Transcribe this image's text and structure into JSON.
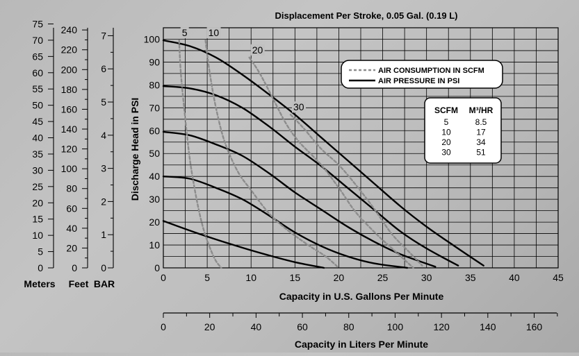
{
  "chart_data": {
    "type": "line",
    "title": "Displacement Per Stroke, 0.05 Gal. (0.19 L)",
    "xlabel": "Capacity in U.S. Gallons Per Minute",
    "ylabel": "Discharge Head in PSI",
    "xlim": [
      0,
      45
    ],
    "ylim": [
      0,
      105
    ],
    "x_ticks": [
      0,
      5,
      10,
      15,
      20,
      25,
      30,
      35,
      40,
      45
    ],
    "y_ticks": [
      0,
      10,
      20,
      30,
      40,
      50,
      60,
      70,
      80,
      90,
      100
    ],
    "grid": true,
    "legend_position": "top-right",
    "legend": {
      "dashed": "AIR CONSUMPTION IN SCFM",
      "solid": "AIR PRESSURE IN PSI"
    },
    "secondary_x_axis": {
      "label": "Capacity in Liters Per Minute",
      "ticks": [
        0,
        20,
        40,
        60,
        80,
        100,
        120,
        140,
        160
      ]
    },
    "left_scales": [
      {
        "label": "Meters",
        "ticks": [
          0,
          5,
          10,
          15,
          20,
          25,
          30,
          35,
          40,
          45,
          50,
          55,
          60,
          65,
          70,
          75
        ]
      },
      {
        "label": "Feet",
        "ticks": [
          0,
          20,
          40,
          60,
          80,
          100,
          120,
          140,
          160,
          180,
          200,
          220,
          240
        ]
      },
      {
        "label": "BAR",
        "ticks": [
          0,
          1,
          2,
          3,
          4,
          5,
          6,
          7
        ]
      }
    ],
    "conversion_table": {
      "headers": [
        "SCFM",
        "M³/HR"
      ],
      "rows": [
        [
          "5",
          "8.5"
        ],
        [
          "10",
          "17"
        ],
        [
          "20",
          "34"
        ],
        [
          "30",
          "51"
        ]
      ]
    },
    "series": [
      {
        "style": "solid",
        "points": [
          [
            0,
            20.5
          ],
          [
            4,
            15
          ],
          [
            8,
            10
          ],
          [
            12,
            5.5
          ],
          [
            15,
            2.5
          ],
          [
            18.3,
            0
          ]
        ]
      },
      {
        "style": "solid",
        "points": [
          [
            0,
            40
          ],
          [
            3,
            39
          ],
          [
            6,
            35
          ],
          [
            9,
            30
          ],
          [
            12,
            23
          ],
          [
            15,
            15.5
          ],
          [
            18,
            9.5
          ],
          [
            21,
            5
          ],
          [
            24,
            2
          ],
          [
            27.8,
            0
          ]
        ]
      },
      {
        "style": "solid",
        "points": [
          [
            0,
            59.5
          ],
          [
            3,
            58
          ],
          [
            6,
            54
          ],
          [
            9,
            49
          ],
          [
            12,
            41.5
          ],
          [
            15,
            33
          ],
          [
            18,
            25.5
          ],
          [
            21,
            18
          ],
          [
            24,
            11.5
          ],
          [
            27,
            6
          ],
          [
            31,
            0.5
          ]
        ]
      },
      {
        "style": "solid",
        "points": [
          [
            0,
            79.5
          ],
          [
            3,
            78.5
          ],
          [
            6,
            75.5
          ],
          [
            9,
            70
          ],
          [
            12,
            62
          ],
          [
            15,
            53
          ],
          [
            18,
            44.5
          ],
          [
            21,
            35
          ],
          [
            24,
            25.5
          ],
          [
            27,
            16
          ],
          [
            30,
            8.5
          ],
          [
            33.6,
            1
          ]
        ]
      },
      {
        "style": "solid",
        "points": [
          [
            0,
            99.5
          ],
          [
            3,
            97
          ],
          [
            6,
            92
          ],
          [
            9,
            84.5
          ],
          [
            12,
            76
          ],
          [
            15,
            67
          ],
          [
            18,
            57
          ],
          [
            21,
            47
          ],
          [
            24,
            37
          ],
          [
            27,
            27
          ],
          [
            30,
            18
          ],
          [
            33,
            10
          ],
          [
            36.5,
            1
          ]
        ]
      },
      {
        "name": "5",
        "style": "dashed",
        "points": [
          [
            1.8,
            99.5
          ],
          [
            2.0,
            85
          ],
          [
            2.5,
            65
          ],
          [
            3.0,
            48
          ],
          [
            3.5,
            36
          ],
          [
            4.0,
            26
          ],
          [
            4.5,
            18
          ],
          [
            5.0,
            12
          ],
          [
            5.5,
            7
          ],
          [
            6.0,
            3
          ],
          [
            6.6,
            0
          ]
        ]
      },
      {
        "name": "10",
        "style": "dashed",
        "points": [
          [
            4.8,
            99.5
          ],
          [
            5.3,
            85
          ],
          [
            6.0,
            70
          ],
          [
            7.0,
            55
          ],
          [
            8.5,
            42
          ],
          [
            10.0,
            34
          ],
          [
            12.0,
            24
          ],
          [
            14.0,
            17
          ],
          [
            16.5,
            10
          ],
          [
            18.5,
            5
          ],
          [
            20.0,
            0
          ]
        ]
      },
      {
        "name": "20",
        "style": "dashed",
        "points": [
          [
            9.8,
            92
          ],
          [
            11,
            85
          ],
          [
            12.5,
            74
          ],
          [
            14,
            63
          ],
          [
            15.5,
            55
          ],
          [
            18,
            45
          ],
          [
            20,
            35
          ],
          [
            22,
            24
          ],
          [
            24.5,
            14
          ],
          [
            26.5,
            7
          ],
          [
            28.5,
            0
          ]
        ]
      },
      {
        "name": "30",
        "style": "dashed",
        "points": [
          [
            14.5,
            67
          ],
          [
            16,
            61
          ],
          [
            18,
            52
          ],
          [
            20,
            45
          ],
          [
            22,
            36
          ],
          [
            24,
            26
          ],
          [
            26,
            15
          ],
          [
            28,
            7
          ],
          [
            29.5,
            1
          ]
        ]
      }
    ]
  }
}
